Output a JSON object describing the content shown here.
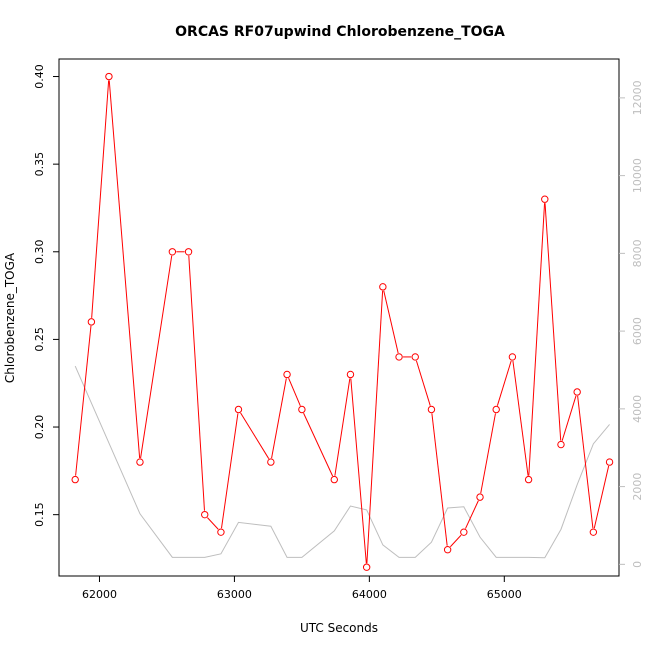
{
  "chart_data": {
    "type": "line",
    "title": "ORCAS RF07upwind Chlorobenzene_TOGA",
    "xlabel": "UTC Seconds",
    "ylabel": "Chlorobenzene_TOGA",
    "xlim": [
      61700,
      65850
    ],
    "ylim": [
      0.115,
      0.41
    ],
    "y2lim": [
      -300,
      13000
    ],
    "x_ticks": [
      62000,
      63000,
      64000,
      65000
    ],
    "y_ticks": [
      0.15,
      0.2,
      0.25,
      0.3,
      0.35,
      0.4
    ],
    "y2_ticks": [
      0,
      2000,
      4000,
      6000,
      8000,
      10000,
      12000
    ],
    "x_tick_labels": [
      "62000",
      "63000",
      "64000",
      "65000"
    ],
    "y_tick_labels": [
      "0.15",
      "0.20",
      "0.25",
      "0.30",
      "0.35",
      "0.40"
    ],
    "y2_tick_labels": [
      "0",
      "2000",
      "4000",
      "6000",
      "8000",
      "10000",
      "12000"
    ],
    "series": [
      {
        "color": "#ff0000",
        "axis": "left",
        "markers": "open-circle",
        "x": [
          61820,
          61940,
          62070,
          62300,
          62540,
          62660,
          62780,
          62900,
          63030,
          63270,
          63390,
          63500,
          63740,
          63860,
          63980,
          64100,
          64220,
          64340,
          64460,
          64580,
          64700,
          64820,
          64940,
          65060,
          65180,
          65300,
          65420,
          65540,
          65660,
          65780
        ],
        "values": [
          0.17,
          0.26,
          0.4,
          0.18,
          0.3,
          0.3,
          0.15,
          0.14,
          0.21,
          0.18,
          0.23,
          0.21,
          0.17,
          0.23,
          0.12,
          0.28,
          0.24,
          0.24,
          0.21,
          0.13,
          0.14,
          0.16,
          0.21,
          0.24,
          0.17,
          0.33,
          0.19,
          0.22,
          0.14,
          0.18
        ]
      },
      {
        "color": "#bebebe",
        "axis": "right",
        "markers": "none",
        "x": [
          61820,
          62300,
          62540,
          62780,
          62900,
          63030,
          63270,
          63390,
          63500,
          63740,
          63860,
          63980,
          64100,
          64220,
          64340,
          64460,
          64580,
          64700,
          64820,
          64940,
          65060,
          65180,
          65300,
          65420,
          65540,
          65660,
          65780
        ],
        "values": [
          5100,
          1300,
          180,
          180,
          270,
          1080,
          980,
          180,
          180,
          860,
          1500,
          1400,
          500,
          180,
          180,
          570,
          1450,
          1480,
          700,
          180,
          180,
          180,
          170,
          900,
          2050,
          3100,
          3600
        ]
      }
    ]
  }
}
